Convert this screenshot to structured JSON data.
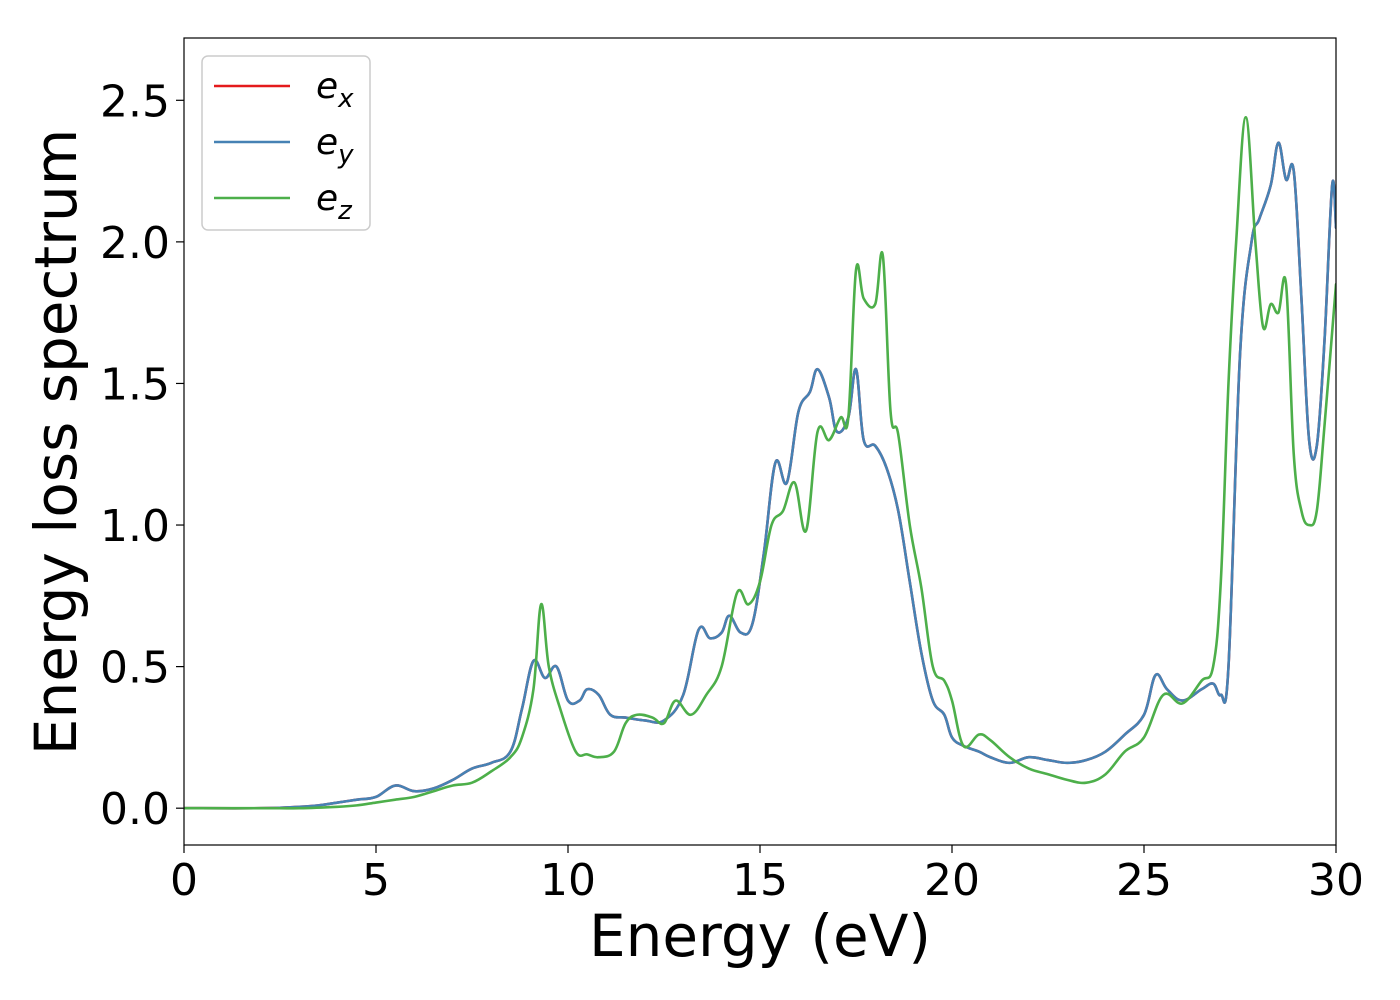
{
  "chart_data": {
    "type": "line",
    "title": "",
    "xlabel": "Energy (eV)",
    "ylabel": "Energy loss spectrum",
    "xlim": [
      0,
      30
    ],
    "ylim": [
      -0.13,
      2.72
    ],
    "xticks": [
      0,
      5,
      10,
      15,
      20,
      25,
      30
    ],
    "xtick_labels": [
      "0",
      "5",
      "10",
      "15",
      "20",
      "25",
      "30"
    ],
    "yticks": [
      0.0,
      0.5,
      1.0,
      1.5,
      2.0,
      2.5
    ],
    "ytick_labels": [
      "0.0",
      "0.5",
      "1.0",
      "1.5",
      "2.0",
      "2.5"
    ],
    "grid": false,
    "legend_position": "top-left",
    "series": [
      {
        "name": "e_x",
        "legend_base": "e",
        "legend_sub": "x",
        "color": "#e41a1c",
        "x": [
          0,
          2,
          3,
          3.5,
          4,
          4.5,
          5,
          5.5,
          6,
          6.5,
          7,
          7.5,
          8,
          8.5,
          8.8,
          9.1,
          9.4,
          9.7,
          10.0,
          10.3,
          10.5,
          10.8,
          11.1,
          11.5,
          12.0,
          12.5,
          13.0,
          13.4,
          13.7,
          14.0,
          14.2,
          14.5,
          14.8,
          15.1,
          15.4,
          15.7,
          16.0,
          16.3,
          16.5,
          16.8,
          17.0,
          17.3,
          17.5,
          17.7,
          18.0,
          18.3,
          18.6,
          18.9,
          19.2,
          19.5,
          19.8,
          20.0,
          20.3,
          20.7,
          21.0,
          21.5,
          22.0,
          22.5,
          23.0,
          23.5,
          24.0,
          24.5,
          25.0,
          25.3,
          25.6,
          26.0,
          26.5,
          26.8,
          27.0,
          27.2,
          27.5,
          27.8,
          28.0,
          28.3,
          28.5,
          28.7,
          28.9,
          29.1,
          29.3,
          29.5,
          29.7,
          29.9,
          30.0
        ],
        "y": [
          0.0,
          0.0,
          0.005,
          0.01,
          0.02,
          0.03,
          0.04,
          0.08,
          0.06,
          0.07,
          0.1,
          0.14,
          0.16,
          0.2,
          0.35,
          0.52,
          0.46,
          0.5,
          0.38,
          0.38,
          0.42,
          0.4,
          0.33,
          0.32,
          0.31,
          0.31,
          0.4,
          0.63,
          0.6,
          0.62,
          0.68,
          0.62,
          0.65,
          0.9,
          1.22,
          1.15,
          1.4,
          1.47,
          1.55,
          1.45,
          1.33,
          1.38,
          1.55,
          1.3,
          1.28,
          1.2,
          1.05,
          0.8,
          0.55,
          0.38,
          0.33,
          0.25,
          0.22,
          0.2,
          0.18,
          0.16,
          0.18,
          0.17,
          0.16,
          0.17,
          0.2,
          0.26,
          0.33,
          0.47,
          0.42,
          0.38,
          0.42,
          0.44,
          0.4,
          0.5,
          1.6,
          2.0,
          2.08,
          2.2,
          2.35,
          2.22,
          2.25,
          1.8,
          1.3,
          1.28,
          1.65,
          2.2,
          2.05
        ]
      },
      {
        "name": "e_y",
        "legend_base": "e",
        "legend_sub": "y",
        "color": "#4682b4",
        "x": [
          0,
          2,
          3,
          3.5,
          4,
          4.5,
          5,
          5.5,
          6,
          6.5,
          7,
          7.5,
          8,
          8.5,
          8.8,
          9.1,
          9.4,
          9.7,
          10.0,
          10.3,
          10.5,
          10.8,
          11.1,
          11.5,
          12.0,
          12.5,
          13.0,
          13.4,
          13.7,
          14.0,
          14.2,
          14.5,
          14.8,
          15.1,
          15.4,
          15.7,
          16.0,
          16.3,
          16.5,
          16.8,
          17.0,
          17.3,
          17.5,
          17.7,
          18.0,
          18.3,
          18.6,
          18.9,
          19.2,
          19.5,
          19.8,
          20.0,
          20.3,
          20.7,
          21.0,
          21.5,
          22.0,
          22.5,
          23.0,
          23.5,
          24.0,
          24.5,
          25.0,
          25.3,
          25.6,
          26.0,
          26.5,
          26.8,
          27.0,
          27.2,
          27.5,
          27.8,
          28.0,
          28.3,
          28.5,
          28.7,
          28.9,
          29.1,
          29.3,
          29.5,
          29.7,
          29.9,
          30.0
        ],
        "y": [
          0.0,
          0.0,
          0.005,
          0.01,
          0.02,
          0.03,
          0.04,
          0.08,
          0.06,
          0.07,
          0.1,
          0.14,
          0.16,
          0.2,
          0.35,
          0.52,
          0.46,
          0.5,
          0.38,
          0.38,
          0.42,
          0.4,
          0.33,
          0.32,
          0.31,
          0.31,
          0.4,
          0.63,
          0.6,
          0.62,
          0.68,
          0.62,
          0.65,
          0.9,
          1.22,
          1.15,
          1.4,
          1.47,
          1.55,
          1.45,
          1.33,
          1.38,
          1.55,
          1.3,
          1.28,
          1.2,
          1.05,
          0.8,
          0.55,
          0.38,
          0.33,
          0.25,
          0.22,
          0.2,
          0.18,
          0.16,
          0.18,
          0.17,
          0.16,
          0.17,
          0.2,
          0.26,
          0.33,
          0.47,
          0.42,
          0.38,
          0.42,
          0.44,
          0.4,
          0.5,
          1.6,
          2.0,
          2.08,
          2.2,
          2.35,
          2.22,
          2.25,
          1.8,
          1.3,
          1.28,
          1.65,
          2.2,
          2.05
        ]
      },
      {
        "name": "e_z",
        "legend_base": "e",
        "legend_sub": "z",
        "color": "#4daf4a",
        "x": [
          0,
          2,
          3,
          4,
          4.5,
          5,
          5.5,
          6,
          6.5,
          7,
          7.5,
          8,
          8.5,
          8.8,
          9.1,
          9.3,
          9.5,
          9.8,
          10.2,
          10.5,
          10.8,
          11.2,
          11.5,
          11.8,
          12.2,
          12.5,
          12.8,
          13.2,
          13.6,
          14.0,
          14.4,
          14.7,
          15.0,
          15.3,
          15.6,
          15.9,
          16.2,
          16.5,
          16.8,
          17.1,
          17.3,
          17.5,
          17.7,
          18.0,
          18.2,
          18.4,
          18.6,
          18.9,
          19.2,
          19.5,
          19.8,
          20.0,
          20.3,
          20.7,
          21.0,
          21.5,
          22.0,
          22.5,
          23.0,
          23.5,
          24.0,
          24.5,
          25.0,
          25.5,
          26.0,
          26.5,
          26.8,
          27.0,
          27.2,
          27.4,
          27.65,
          27.9,
          28.1,
          28.3,
          28.5,
          28.7,
          28.9,
          29.1,
          29.3,
          29.5,
          29.7,
          30.0
        ],
        "y": [
          0.0,
          0.0,
          0.0,
          0.005,
          0.01,
          0.02,
          0.03,
          0.04,
          0.06,
          0.08,
          0.09,
          0.13,
          0.18,
          0.25,
          0.42,
          0.72,
          0.5,
          0.35,
          0.2,
          0.19,
          0.18,
          0.2,
          0.3,
          0.33,
          0.32,
          0.3,
          0.38,
          0.33,
          0.4,
          0.5,
          0.76,
          0.72,
          0.8,
          1.0,
          1.05,
          1.15,
          0.98,
          1.33,
          1.3,
          1.38,
          1.38,
          1.9,
          1.8,
          1.78,
          1.95,
          1.4,
          1.32,
          1.0,
          0.78,
          0.5,
          0.45,
          0.38,
          0.22,
          0.26,
          0.24,
          0.18,
          0.14,
          0.12,
          0.1,
          0.09,
          0.12,
          0.2,
          0.25,
          0.4,
          0.37,
          0.45,
          0.5,
          0.8,
          1.5,
          2.0,
          2.44,
          2.0,
          1.7,
          1.78,
          1.75,
          1.85,
          1.25,
          1.05,
          1.0,
          1.05,
          1.35,
          1.85
        ]
      }
    ]
  }
}
